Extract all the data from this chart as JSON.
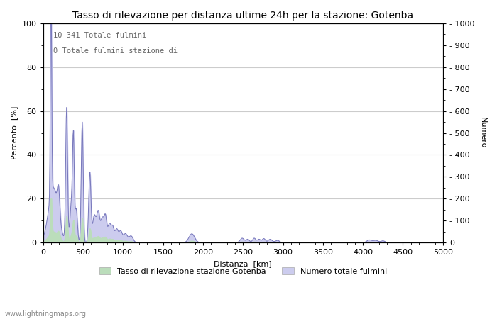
{
  "title": "Tasso di rilevazione per distanza ultime 24h per la stazione: Gotenba",
  "xlabel": "Distanza  [km]",
  "ylabel_left": "Percento  [%]",
  "ylabel_right": "Numero",
  "annotation_line1": "10 341 Totale fulmini",
  "annotation_line2": "0 Totale fulmini stazione di",
  "legend_label1": "Tasso di rilevazione stazione Gotenba",
  "legend_label2": "Numero totale fulmini",
  "watermark": "www.lightningmaps.org",
  "xlim": [
    0,
    5000
  ],
  "ylim_left": [
    0,
    100
  ],
  "ylim_right": [
    0,
    1000
  ],
  "xticks": [
    0,
    500,
    1000,
    1500,
    2000,
    2500,
    3000,
    3500,
    4000,
    4500,
    5000
  ],
  "yticks_left": [
    0,
    20,
    40,
    60,
    80,
    100
  ],
  "yticks_right": [
    0,
    100,
    200,
    300,
    400,
    500,
    600,
    700,
    800,
    900,
    1000
  ],
  "line_color": "#7777bb",
  "fill_detection_color": "#bbddbb",
  "fill_total_color": "#ccccee",
  "background_color": "#ffffff",
  "grid_color": "#cccccc",
  "title_fontsize": 10,
  "label_fontsize": 8,
  "tick_fontsize": 8,
  "legend_fontsize": 8
}
